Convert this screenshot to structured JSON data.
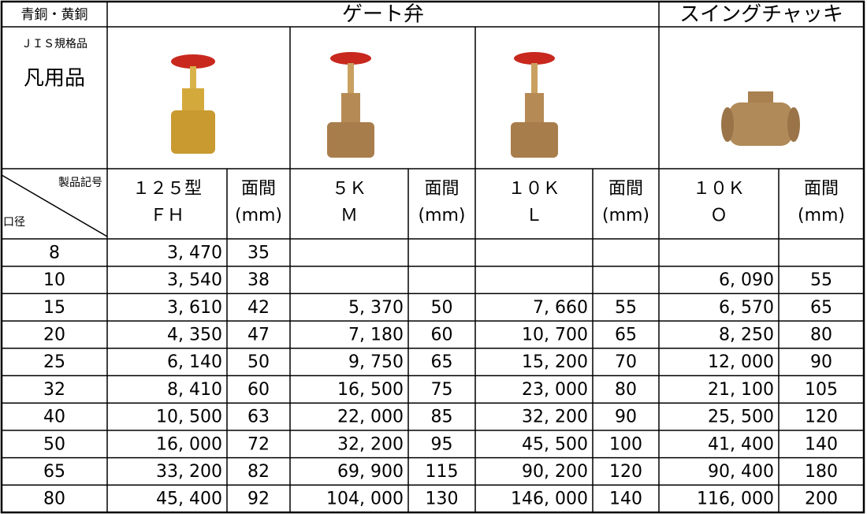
{
  "header": {
    "material": "青銅・黄銅",
    "gate_valve": "ゲート弁",
    "swing_check": "スイングチャッキ"
  },
  "side_labels": [
    "ＪＩＳ規格品",
    "凡用品"
  ],
  "column_header": {
    "corner_top": "製品記号",
    "corner_bottom": "口径",
    "columns": [
      [
        "１２５型",
        "ＦＨ"
      ],
      [
        "面間",
        "(mm)"
      ],
      [
        "５Ｋ",
        "Ｍ"
      ],
      [
        "面間",
        "(mm)"
      ],
      [
        "１０Ｋ",
        "Ｌ"
      ],
      [
        "面間",
        "(mm)"
      ],
      [
        "１０Ｋ",
        "Ｏ"
      ],
      [
        "面間",
        "(mm)"
      ]
    ]
  },
  "table": {
    "rows": [
      [
        "8",
        "3, 470",
        "35",
        null,
        null,
        null,
        null,
        null,
        null
      ],
      [
        "10",
        "3, 540",
        "38",
        null,
        null,
        null,
        null,
        "6, 090",
        "55"
      ],
      [
        "15",
        "3, 610",
        "42",
        "5, 370",
        "50",
        "7, 660",
        "55",
        "6, 570",
        "65"
      ],
      [
        "20",
        "4, 350",
        "47",
        "7, 180",
        "60",
        "10, 700",
        "65",
        "8, 250",
        "80"
      ],
      [
        "25",
        "6, 140",
        "50",
        "9, 750",
        "65",
        "15, 200",
        "70",
        "12, 000",
        "90"
      ],
      [
        "32",
        "8, 410",
        "60",
        "16, 500",
        "75",
        "23, 000",
        "80",
        "21, 100",
        "105"
      ],
      [
        "40",
        "10, 500",
        "63",
        "22, 000",
        "85",
        "32, 200",
        "90",
        "25, 500",
        "120"
      ],
      [
        "50",
        "16, 000",
        "72",
        "32, 200",
        "95",
        "45, 500",
        "100",
        "41, 400",
        "140"
      ],
      [
        "65",
        "33, 200",
        "82",
        "69, 900",
        "115",
        "90, 200",
        "120",
        "90, 400",
        "180"
      ],
      [
        "80",
        "45, 400",
        "92",
        "104, 000",
        "130",
        "146, 000",
        "140",
        "116, 000",
        "200"
      ]
    ]
  }
}
